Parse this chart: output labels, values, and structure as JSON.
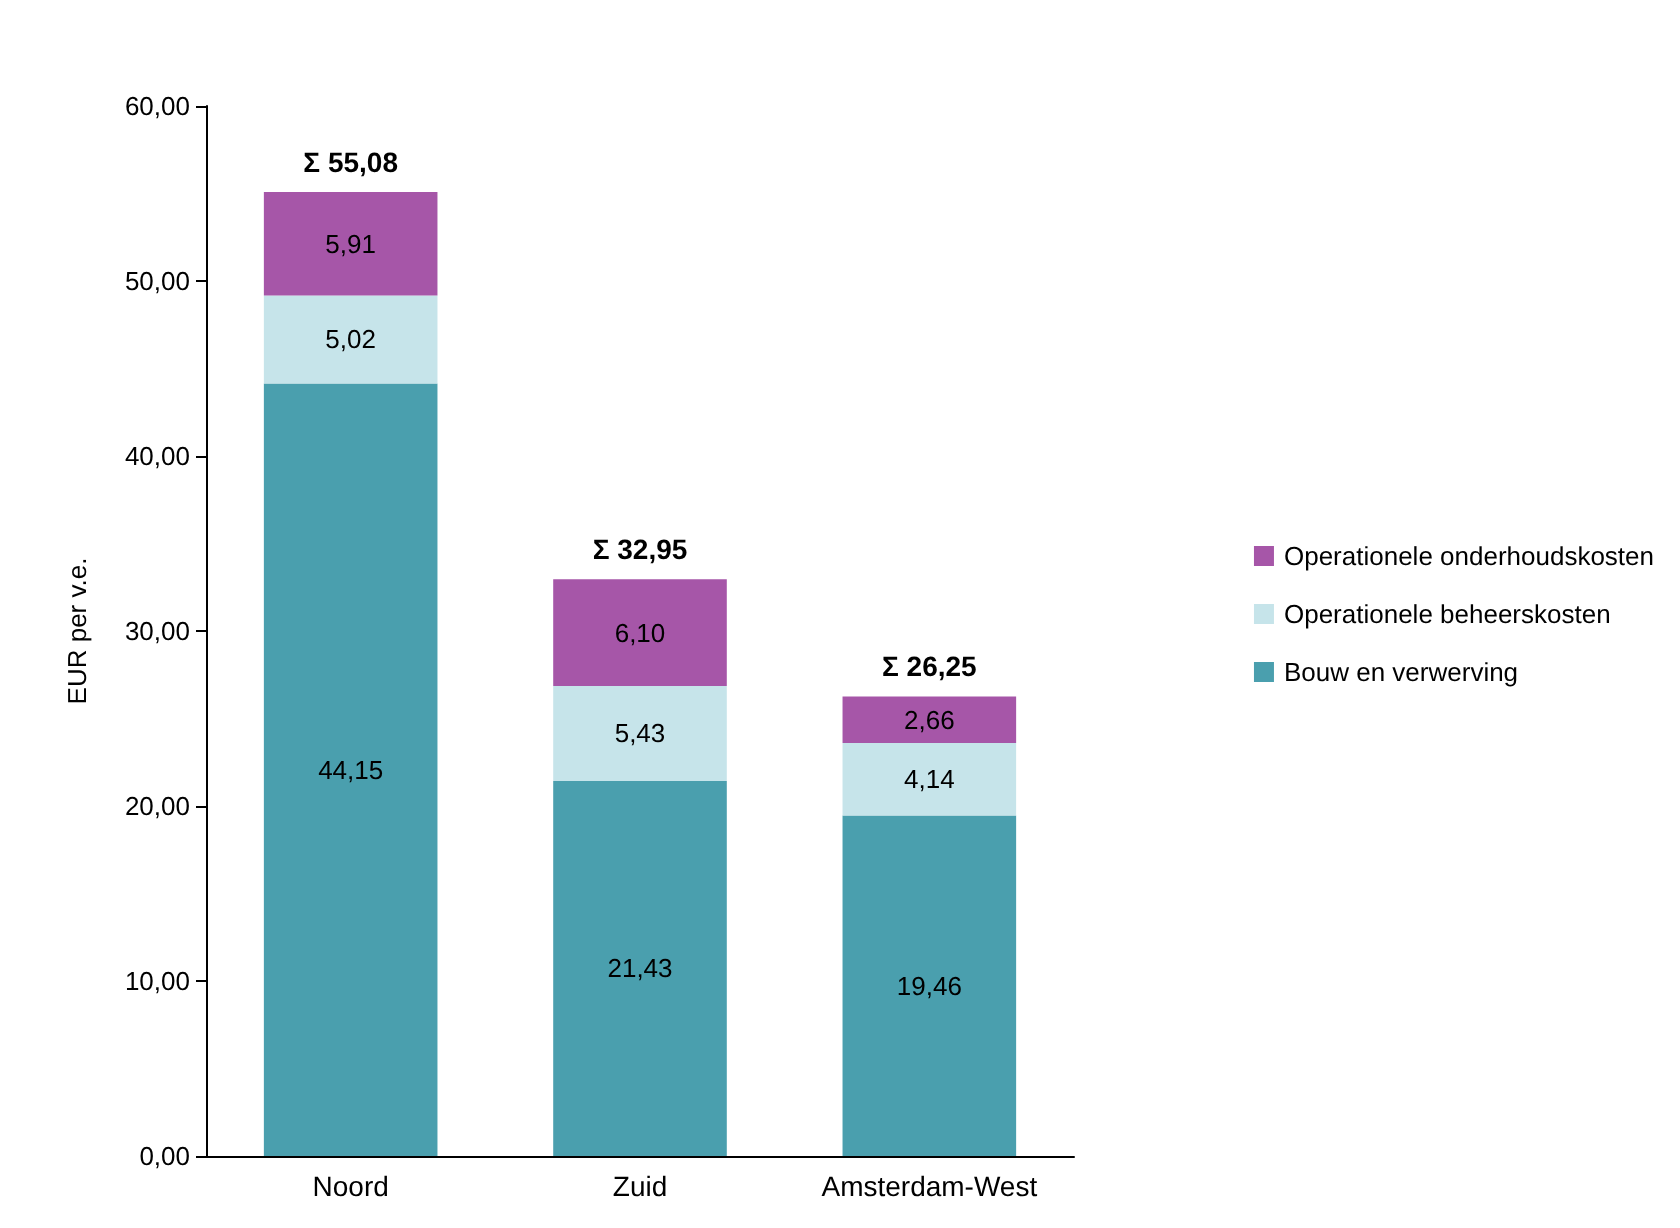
{
  "chart_data": {
    "type": "bar",
    "stacked": true,
    "ylabel": "EUR per v.e.",
    "categories": [
      "Noord",
      "Zuid",
      "Amsterdam-West"
    ],
    "series": [
      {
        "name": "Bouw en verwerving",
        "color": "#4a9fae",
        "values": [
          44.15,
          21.43,
          19.46
        ],
        "value_labels": [
          "44,15",
          "21,43",
          "19,46"
        ]
      },
      {
        "name": "Operationele beheerskosten",
        "color": "#c6e4ea",
        "values": [
          5.02,
          5.43,
          4.14
        ],
        "value_labels": [
          "5,02",
          "5,43",
          "4,14"
        ]
      },
      {
        "name": "Operationele onderhoudskosten",
        "color": "#a656a8",
        "values": [
          5.91,
          6.1,
          2.66
        ],
        "value_labels": [
          "5,91",
          "6,10",
          "2,66"
        ]
      }
    ],
    "totals": [
      "Σ 55,08",
      "Σ 32,95",
      "Σ 26,25"
    ],
    "legend": "right",
    "grid": false,
    "ylim": [
      0,
      60
    ],
    "yticks": [
      {
        "value": 0,
        "label": "0,00"
      },
      {
        "value": 10,
        "label": "10,00"
      },
      {
        "value": 20,
        "label": "20,00"
      },
      {
        "value": 30,
        "label": "30,00"
      },
      {
        "value": 40,
        "label": "40,00"
      },
      {
        "value": 50,
        "label": "50,00"
      },
      {
        "value": 60,
        "label": "60,00"
      }
    ]
  }
}
